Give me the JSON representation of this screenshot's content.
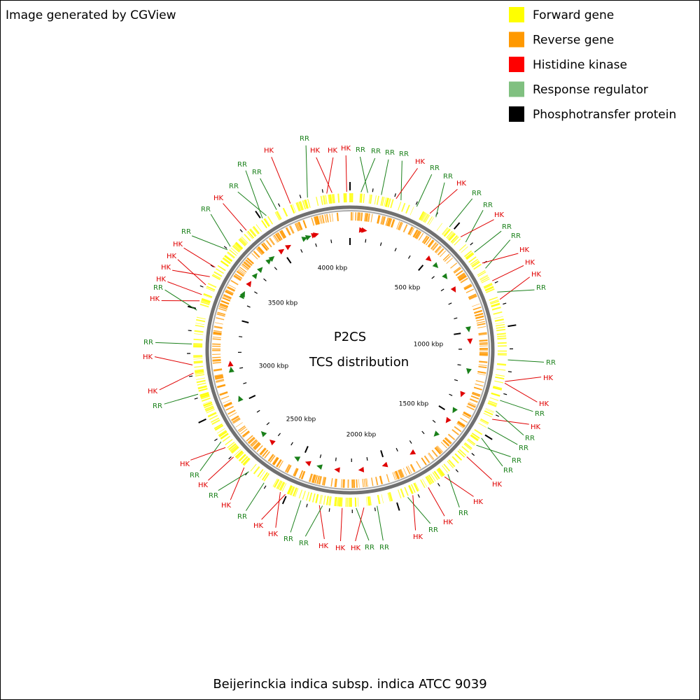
{
  "header": {
    "credit": "Image generated by CGView"
  },
  "legend": [
    {
      "label": "Forward gene",
      "color": "#ffff00"
    },
    {
      "label": "Reverse gene",
      "color": "#ff9900"
    },
    {
      "label": "Histidine kinase",
      "color": "#ff0000"
    },
    {
      "label": "Response regulator",
      "color": "#80c080"
    },
    {
      "label": "Phosphotransfer protein",
      "color": "#000000"
    }
  ],
  "center": {
    "title": "P2CS",
    "subtitle": "TCS distribution"
  },
  "scale_labels": [
    "500 kbp",
    "1000 kbp",
    "1500 kbp",
    "2000 kbp",
    "2500 kbp",
    "3000 kbp",
    "3500 kbp",
    "4000 kbp"
  ],
  "feature_labels": [
    {
      "text": "RR",
      "color": "#1a801a"
    },
    {
      "text": "HK",
      "color": "#e00000"
    },
    {
      "text": "HK",
      "color": "#e00000"
    },
    {
      "text": "HK",
      "color": "#e00000"
    },
    {
      "text": "HK",
      "color": "#e00000"
    },
    {
      "text": "RR",
      "color": "#1a801a"
    },
    {
      "text": "RR",
      "color": "#1a801a"
    },
    {
      "text": "RR",
      "color": "#1a801a"
    },
    {
      "text": "RR",
      "color": "#1a801a"
    },
    {
      "text": "HK",
      "color": "#e00000"
    },
    {
      "text": "RR",
      "color": "#1a801a"
    },
    {
      "text": "RR",
      "color": "#1a801a"
    },
    {
      "text": "HK",
      "color": "#e00000"
    },
    {
      "text": "RR",
      "color": "#1a801a"
    },
    {
      "text": "RR",
      "color": "#1a801a"
    },
    {
      "text": "HK",
      "color": "#e00000"
    },
    {
      "text": "RR",
      "color": "#1a801a"
    },
    {
      "text": "RR",
      "color": "#1a801a"
    },
    {
      "text": "HK",
      "color": "#e00000"
    },
    {
      "text": "HK",
      "color": "#e00000"
    },
    {
      "text": "HK",
      "color": "#e00000"
    },
    {
      "text": "RR",
      "color": "#1a801a"
    },
    {
      "text": "RR",
      "color": "#1a801a"
    },
    {
      "text": "HK",
      "color": "#e00000"
    },
    {
      "text": "HK",
      "color": "#e00000"
    },
    {
      "text": "RR",
      "color": "#1a801a"
    },
    {
      "text": "HK",
      "color": "#e00000"
    },
    {
      "text": "RR",
      "color": "#1a801a"
    },
    {
      "text": "RR",
      "color": "#1a801a"
    },
    {
      "text": "RR",
      "color": "#1a801a"
    },
    {
      "text": "RR",
      "color": "#1a801a"
    },
    {
      "text": "HK",
      "color": "#e00000"
    },
    {
      "text": "HK",
      "color": "#e00000"
    },
    {
      "text": "RR",
      "color": "#1a801a"
    },
    {
      "text": "HK",
      "color": "#e00000"
    },
    {
      "text": "RR",
      "color": "#1a801a"
    },
    {
      "text": "HK",
      "color": "#e00000"
    },
    {
      "text": "RR",
      "color": "#1a801a"
    },
    {
      "text": "RR",
      "color": "#1a801a"
    },
    {
      "text": "HK",
      "color": "#e00000"
    },
    {
      "text": "HK",
      "color": "#e00000"
    },
    {
      "text": "HK",
      "color": "#e00000"
    },
    {
      "text": "RR",
      "color": "#1a801a"
    },
    {
      "text": "RR",
      "color": "#1a801a"
    },
    {
      "text": "HK",
      "color": "#e00000"
    },
    {
      "text": "HK",
      "color": "#e00000"
    },
    {
      "text": "RR",
      "color": "#1a801a"
    },
    {
      "text": "HK",
      "color": "#e00000"
    },
    {
      "text": "RR",
      "color": "#1a801a"
    },
    {
      "text": "HK",
      "color": "#e00000"
    },
    {
      "text": "RR",
      "color": "#1a801a"
    },
    {
      "text": "HK",
      "color": "#e00000"
    },
    {
      "text": "RR",
      "color": "#1a801a"
    },
    {
      "text": "HK",
      "color": "#e00000"
    },
    {
      "text": "HK",
      "color": "#e00000"
    },
    {
      "text": "RR",
      "color": "#1a801a"
    },
    {
      "text": "HK",
      "color": "#e00000"
    },
    {
      "text": "RR",
      "color": "#1a801a"
    },
    {
      "text": "HK",
      "color": "#e00000"
    },
    {
      "text": "HK",
      "color": "#e00000"
    },
    {
      "text": "HK",
      "color": "#e00000"
    },
    {
      "text": "HK",
      "color": "#e00000"
    },
    {
      "text": "RR",
      "color": "#1a801a"
    },
    {
      "text": "RR",
      "color": "#1a801a"
    },
    {
      "text": "HK",
      "color": "#e00000"
    },
    {
      "text": "RR",
      "color": "#1a801a"
    },
    {
      "text": "RR",
      "color": "#1a801a"
    },
    {
      "text": "RR",
      "color": "#1a801a"
    }
  ],
  "footer": {
    "caption": "Beijerinckia indica subsp. indica ATCC 9039"
  }
}
